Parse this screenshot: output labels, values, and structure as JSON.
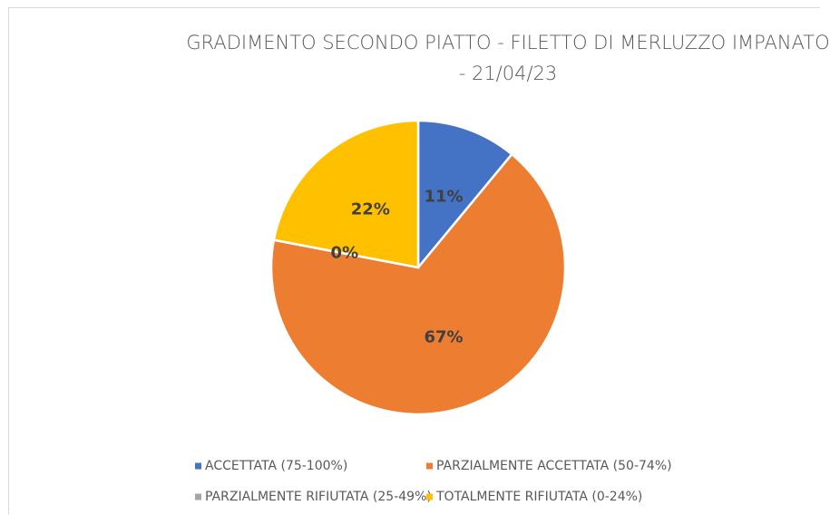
{
  "chart_data": {
    "type": "pie",
    "title": "GRADIMENTO SECONDO PIATTO - FILETTO DI MERLUZZO IMPANATO - 21/04/23",
    "categories": [
      "ACCETTATA (75-100%)",
      "PARZIALMENTE ACCETTATA (50-74%)",
      "PARZIALMENTE RIFIUTATA (25-49%)",
      "TOTALMENTE RIFIUTATA (0-24%)"
    ],
    "values": [
      11,
      67,
      0,
      22
    ],
    "value_labels": [
      "11%",
      "67%",
      "0%",
      "22%"
    ],
    "colors": [
      "#4472c4",
      "#ed7d31",
      "#a5a5a5",
      "#ffc000"
    ],
    "legend": "bottom"
  }
}
